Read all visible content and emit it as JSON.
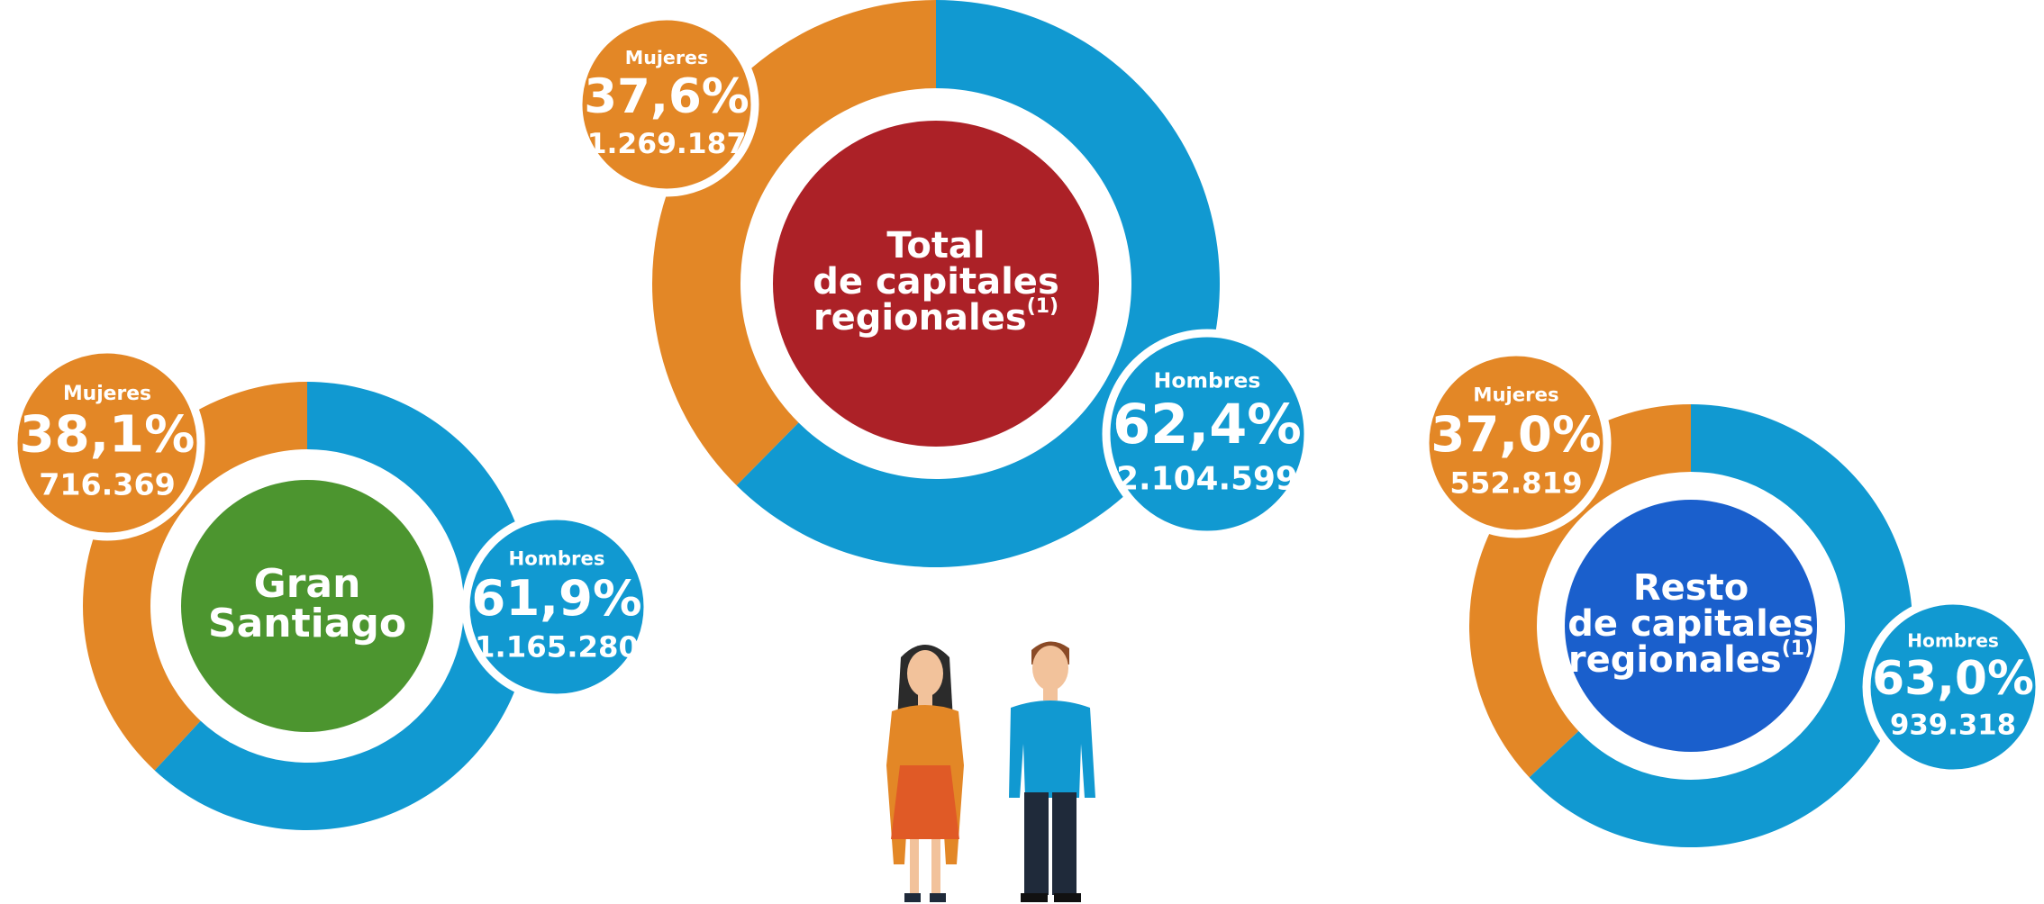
{
  "chart_data": [
    {
      "type": "donut",
      "title": [
        "Total",
        "de capitales",
        "regionales"
      ],
      "note": "(1)",
      "center_color": "#ac2127",
      "categories": [
        "Mujeres",
        "Hombres"
      ],
      "values": [
        37.6,
        62.4
      ],
      "value_labels": [
        "37,6%",
        "62,4%"
      ],
      "counts": [
        "1.269.187",
        "2.104.599"
      ],
      "colors": [
        "#e38726",
        "#1199d1"
      ]
    },
    {
      "type": "donut",
      "title": [
        "Gran",
        "Santiago"
      ],
      "center_color": "#4c952f",
      "categories": [
        "Mujeres",
        "Hombres"
      ],
      "values": [
        38.1,
        61.9
      ],
      "value_labels": [
        "38,1%",
        "61,9%"
      ],
      "counts": [
        "716.369",
        "1.165.280"
      ],
      "colors": [
        "#e38726",
        "#1199d1"
      ]
    },
    {
      "type": "donut",
      "title": [
        "Resto",
        "de capitales",
        "regionales"
      ],
      "note": "(1)",
      "center_color": "#1a5fcc",
      "categories": [
        "Mujeres",
        "Hombres"
      ],
      "values": [
        37.0,
        63.0
      ],
      "value_labels": [
        "37,0%",
        "63,0%"
      ],
      "counts": [
        "552.819",
        "939.318"
      ],
      "colors": [
        "#e38726",
        "#1199d1"
      ]
    }
  ]
}
